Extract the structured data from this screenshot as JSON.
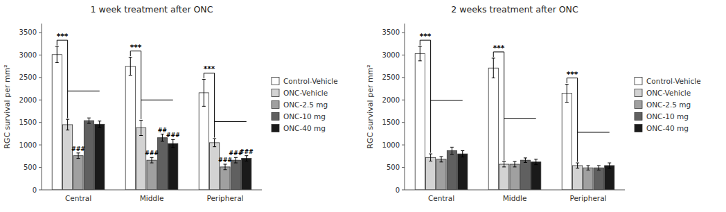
{
  "chart_data": [
    {
      "type": "bar",
      "title": "1 week treatment after ONC",
      "ylabel": "RGC survival per mm²",
      "categories": [
        "Central",
        "Middle",
        "Peripheral"
      ],
      "series": [
        {
          "name": "Control-Vehicle",
          "color": "#ffffff",
          "values": [
            3010,
            2750,
            2160
          ],
          "errors": [
            180,
            200,
            300
          ]
        },
        {
          "name": "ONC-Vehicle",
          "color": "#d3d3d3",
          "values": [
            1450,
            1380,
            1050
          ],
          "errors": [
            120,
            170,
            90
          ]
        },
        {
          "name": "ONC-2.5 mg",
          "color": "#a0a0a0",
          "values": [
            760,
            660,
            510
          ],
          "errors": [
            60,
            60,
            60
          ]
        },
        {
          "name": "ONC-10 mg",
          "color": "#606060",
          "values": [
            1540,
            1160,
            660
          ],
          "errors": [
            60,
            80,
            60
          ]
        },
        {
          "name": "ONC-40 mg",
          "color": "#1a1a1a",
          "values": [
            1460,
            1030,
            700
          ],
          "errors": [
            70,
            90,
            60
          ]
        }
      ],
      "brackets": [
        {
          "text": "***",
          "category": "Central",
          "series": [
            "Control-Vehicle",
            "ONC-Vehicle"
          ]
        },
        {
          "text": "***",
          "category": "Middle",
          "series": [
            "Control-Vehicle",
            "ONC-Vehicle"
          ]
        },
        {
          "text": "***",
          "category": "Peripheral",
          "series": [
            "Control-Vehicle",
            "ONC-Vehicle"
          ]
        }
      ],
      "lines": [
        {
          "y": 2200,
          "category": "Central",
          "series": [
            "ONC-Vehicle",
            "ONC-40 mg"
          ]
        },
        {
          "y": 2000,
          "category": "Middle",
          "series": [
            "ONC-Vehicle",
            "ONC-40 mg"
          ]
        },
        {
          "y": 1520,
          "category": "Peripheral",
          "series": [
            "ONC-Vehicle",
            "ONC-40 mg"
          ]
        }
      ],
      "annotations": [
        {
          "text": "###",
          "category": "Central",
          "series": "ONC-2.5 mg"
        },
        {
          "text": "###",
          "category": "Middle",
          "series": "ONC-2.5 mg"
        },
        {
          "text": "##",
          "category": "Middle",
          "series": "ONC-10 mg"
        },
        {
          "text": "###",
          "category": "Middle",
          "series": "ONC-40 mg"
        },
        {
          "text": "###",
          "category": "Peripheral",
          "series": "ONC-2.5 mg"
        },
        {
          "text": "###",
          "category": "Peripheral",
          "series": "ONC-10 mg"
        },
        {
          "text": "###",
          "category": "Peripheral",
          "series": "ONC-40 mg"
        }
      ],
      "ylim": [
        0,
        3700
      ],
      "yticks": [
        0,
        500,
        1000,
        1500,
        2000,
        2500,
        3000,
        3500
      ],
      "grid": false,
      "legend": "right"
    },
    {
      "type": "bar",
      "title": "2 weeks treatment after ONC",
      "ylabel": "RGC survival per mm²",
      "categories": [
        "Central",
        "Middle",
        "Peripheral"
      ],
      "series": [
        {
          "name": "Control-Vehicle",
          "color": "#ffffff",
          "values": [
            3030,
            2710,
            2150
          ],
          "errors": [
            160,
            220,
            200
          ]
        },
        {
          "name": "ONC-Vehicle",
          "color": "#d3d3d3",
          "values": [
            720,
            570,
            540
          ],
          "errors": [
            80,
            60,
            60
          ]
        },
        {
          "name": "ONC-2.5 mg",
          "color": "#a0a0a0",
          "values": [
            680,
            570,
            490
          ],
          "errors": [
            60,
            60,
            50
          ]
        },
        {
          "name": "ONC-10 mg",
          "color": "#606060",
          "values": [
            870,
            660,
            490
          ],
          "errors": [
            80,
            50,
            50
          ]
        },
        {
          "name": "ONC-40 mg",
          "color": "#1a1a1a",
          "values": [
            800,
            620,
            540
          ],
          "errors": [
            70,
            60,
            60
          ]
        }
      ],
      "brackets": [
        {
          "text": "***",
          "category": "Central",
          "series": [
            "Control-Vehicle",
            "ONC-Vehicle"
          ]
        },
        {
          "text": "***",
          "category": "Middle",
          "series": [
            "Control-Vehicle",
            "ONC-Vehicle"
          ]
        },
        {
          "text": "***",
          "category": "Peripheral",
          "series": [
            "Control-Vehicle",
            "ONC-Vehicle"
          ]
        }
      ],
      "lines": [
        {
          "y": 1990,
          "category": "Central",
          "series": [
            "ONC-Vehicle",
            "ONC-40 mg"
          ]
        },
        {
          "y": 1580,
          "category": "Middle",
          "series": [
            "ONC-Vehicle",
            "ONC-40 mg"
          ]
        },
        {
          "y": 1280,
          "category": "Peripheral",
          "series": [
            "ONC-Vehicle",
            "ONC-40 mg"
          ]
        }
      ],
      "annotations": [],
      "ylim": [
        0,
        3700
      ],
      "yticks": [
        0,
        500,
        1000,
        1500,
        2000,
        2500,
        3000,
        3500
      ],
      "grid": false,
      "legend": "right"
    }
  ]
}
